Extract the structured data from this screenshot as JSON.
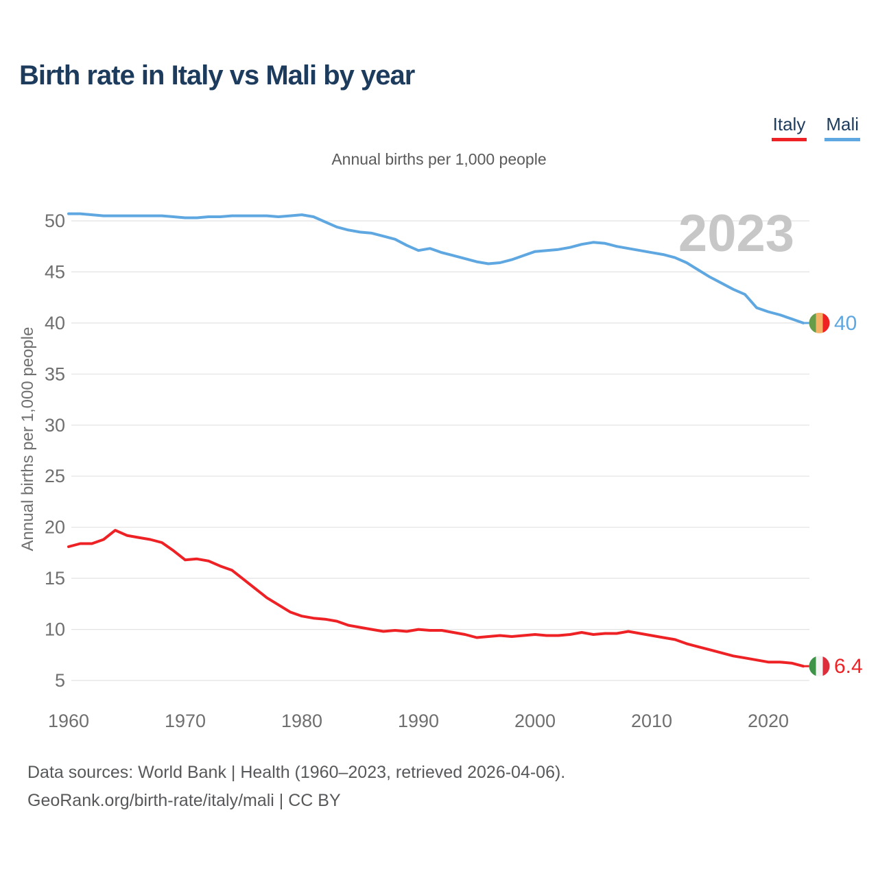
{
  "page": {
    "title": "Birth rate in Italy vs Mali by year",
    "subtitle": "Annual births per 1,000 people",
    "watermark": "2023",
    "footer_line1": "Data sources: World Bank | Health (1960–2023, retrieved 2026-04-06).",
    "footer_line2": "GeoRank.org/birth-rate/italy/mali | CC BY"
  },
  "legend": {
    "items": [
      {
        "label": "Italy",
        "color": "#ee2125"
      },
      {
        "label": "Mali",
        "color": "#5fa7e0"
      }
    ]
  },
  "axes": {
    "y_label": "Annual births per 1,000 people",
    "y_ticks": [
      5,
      10,
      15,
      20,
      25,
      30,
      35,
      40,
      45,
      50
    ],
    "x_ticks": [
      1960,
      1970,
      1980,
      1990,
      2000,
      2010,
      2020
    ]
  },
  "chart_data": {
    "type": "line",
    "title": "Birth rate in Italy vs Mali by year",
    "subtitle": "Annual births per 1,000 people",
    "xlabel": "",
    "ylabel": "Annual births per 1,000 people",
    "xlim": [
      1960,
      2023
    ],
    "ylim": [
      5,
      50
    ],
    "grid": true,
    "legend_position": "top-right",
    "x": [
      1960,
      1961,
      1962,
      1963,
      1964,
      1965,
      1966,
      1967,
      1968,
      1969,
      1970,
      1971,
      1972,
      1973,
      1974,
      1975,
      1976,
      1977,
      1978,
      1979,
      1980,
      1981,
      1982,
      1983,
      1984,
      1985,
      1986,
      1987,
      1988,
      1989,
      1990,
      1991,
      1992,
      1993,
      1994,
      1995,
      1996,
      1997,
      1998,
      1999,
      2000,
      2001,
      2002,
      2003,
      2004,
      2005,
      2006,
      2007,
      2008,
      2009,
      2010,
      2011,
      2012,
      2013,
      2014,
      2015,
      2016,
      2017,
      2018,
      2019,
      2020,
      2021,
      2022,
      2023
    ],
    "series": [
      {
        "name": "Italy",
        "color": "#ee2125",
        "end_label": "6.4",
        "flag_colors": [
          "#3e9349",
          "#f4f4f4",
          "#dd2c3b"
        ],
        "values": [
          18.1,
          18.4,
          18.4,
          18.8,
          19.7,
          19.2,
          19.0,
          18.8,
          18.5,
          17.7,
          16.8,
          16.9,
          16.7,
          16.2,
          15.8,
          14.9,
          14.0,
          13.1,
          12.4,
          11.7,
          11.3,
          11.1,
          11.0,
          10.8,
          10.4,
          10.2,
          10.0,
          9.8,
          9.9,
          9.8,
          10.0,
          9.9,
          9.9,
          9.7,
          9.5,
          9.2,
          9.3,
          9.4,
          9.3,
          9.4,
          9.5,
          9.4,
          9.4,
          9.5,
          9.7,
          9.5,
          9.6,
          9.6,
          9.8,
          9.6,
          9.4,
          9.2,
          9.0,
          8.6,
          8.3,
          8.0,
          7.7,
          7.4,
          7.2,
          7.0,
          6.8,
          6.8,
          6.7,
          6.4
        ]
      },
      {
        "name": "Mali",
        "color": "#5fa7e0",
        "end_label": "40",
        "flag_colors": [
          "#679c48",
          "#f5b266",
          "#ee2222"
        ],
        "values": [
          50.7,
          50.7,
          50.6,
          50.5,
          50.5,
          50.5,
          50.5,
          50.5,
          50.5,
          50.4,
          50.3,
          50.3,
          50.4,
          50.4,
          50.5,
          50.5,
          50.5,
          50.5,
          50.4,
          50.5,
          50.6,
          50.4,
          49.9,
          49.4,
          49.1,
          48.9,
          48.8,
          48.5,
          48.2,
          47.6,
          47.1,
          47.3,
          46.9,
          46.6,
          46.3,
          46.0,
          45.8,
          45.9,
          46.2,
          46.6,
          47.0,
          47.1,
          47.2,
          47.4,
          47.7,
          47.9,
          47.8,
          47.5,
          47.3,
          47.1,
          46.9,
          46.7,
          46.4,
          45.9,
          45.2,
          44.5,
          43.9,
          43.3,
          42.8,
          41.5,
          41.1,
          40.8,
          40.4,
          40.0
        ]
      }
    ]
  }
}
